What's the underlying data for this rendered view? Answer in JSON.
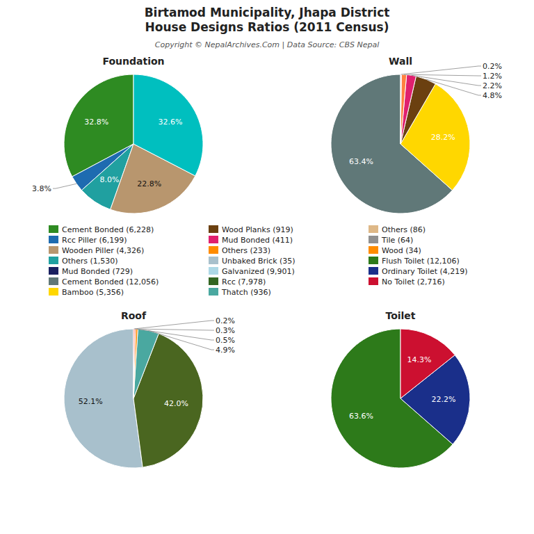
{
  "title": "Birtamod Municipality, Jhapa District\nHouse Designs Ratios (2011 Census)",
  "subtitle": "Copyright © NepalArchives.Com | Data Source: CBS Nepal",
  "chart_data": [
    {
      "type": "pie",
      "title": "Foundation",
      "values": [
        32.8,
        3.8,
        8.0,
        22.8,
        32.6
      ],
      "colors": [
        "#2E8B22",
        "#1E6BB0",
        "#20A0A0",
        "#B8966E",
        "#00BFBF"
      ],
      "data_labels": true,
      "value_labels": [
        "32.8%",
        "3.8%",
        "8.0%",
        "22.8%",
        "32.6%"
      ]
    },
    {
      "type": "pie",
      "title": "Wall",
      "values": [
        63.4,
        28.2,
        4.8,
        2.2,
        1.2,
        0.2
      ],
      "colors": [
        "#607878",
        "#FFD700",
        "#6B4010",
        "#E0206E",
        "#FF8040",
        "#FFB6C1"
      ],
      "data_labels": true,
      "value_labels": [
        "63.4%",
        "28.2%",
        "4.8%",
        "2.2%",
        "1.2%",
        "0.2%"
      ]
    },
    {
      "type": "pie",
      "title": "Roof",
      "values": [
        52.1,
        42.0,
        4.9,
        0.5,
        0.3,
        0.2
      ],
      "colors": [
        "#A8C0CC",
        "#4A6620",
        "#4AA8A0",
        "#FF8C00",
        "#FF4500",
        "#FF2020"
      ],
      "data_labels": true,
      "value_labels": [
        "52.1%",
        "42.0%",
        "4.9%",
        "0.5%",
        "0.3%",
        "0.2%"
      ]
    },
    {
      "type": "pie",
      "title": "Toilet",
      "values": [
        63.6,
        22.2,
        14.3
      ],
      "colors": [
        "#2D7A1A",
        "#1A2F8A",
        "#CC1030"
      ],
      "data_labels": true,
      "value_labels": [
        "63.6%",
        "22.2%",
        "14.3%"
      ]
    }
  ],
  "legend_items": [
    {
      "label": "Cement Bonded (6,228)",
      "color": "#2E8B22"
    },
    {
      "label": "Rcc Piller (6,199)",
      "color": "#1E6BB0"
    },
    {
      "label": "Wooden Piller (4,326)",
      "color": "#B8966E"
    },
    {
      "label": "Others (1,530)",
      "color": "#20A0A0"
    },
    {
      "label": "Mud Bonded (729)",
      "color": "#1A2060"
    },
    {
      "label": "Cement Bonded (12,056)",
      "color": "#607878"
    },
    {
      "label": "Bamboo (5,356)",
      "color": "#FFD700"
    },
    {
      "label": "Wood Planks (919)",
      "color": "#6B4010"
    },
    {
      "label": "Mud Bonded (411)",
      "color": "#E0206E"
    },
    {
      "label": "Others (233)",
      "color": "#FF8C00"
    },
    {
      "label": "Unbaked Brick (35)",
      "color": "#A8C0CC"
    },
    {
      "label": "Galvanized (9,901)",
      "color": "#ADD8E6"
    },
    {
      "label": "Rcc (7,978)",
      "color": "#336622"
    },
    {
      "label": "Thatch (936)",
      "color": "#4AA8A0"
    },
    {
      "label": "Others (86)",
      "color": "#DEB887"
    },
    {
      "label": "Tile (64)",
      "color": "#909090"
    },
    {
      "label": "Wood (34)",
      "color": "#FF8C00"
    },
    {
      "label": "Flush Toilet (12,106)",
      "color": "#2D7A1A"
    },
    {
      "label": "Ordinary Toilet (4,219)",
      "color": "#1A2F8A"
    },
    {
      "label": "No Toilet (2,716)",
      "color": "#CC1030"
    }
  ]
}
